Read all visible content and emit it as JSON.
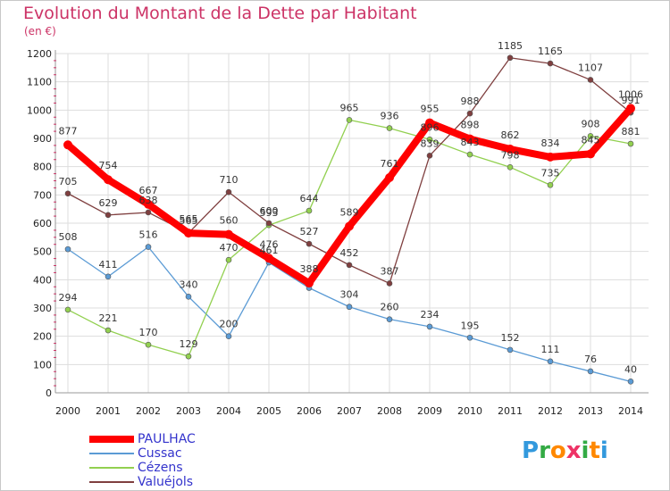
{
  "header": {
    "title": "Evolution du Montant de la Dette par Habitant",
    "unit": "(en €)"
  },
  "logo": {
    "letters": [
      "P",
      "r",
      "o",
      "x",
      "i",
      "t",
      "i"
    ],
    "colors": [
      "#3399dd",
      "#33aa44",
      "#ff8800",
      "#ee3366",
      "#33aa44",
      "#ff8800",
      "#3399dd"
    ]
  },
  "chart_data": {
    "type": "line",
    "title": "Evolution du Montant de la Dette par Habitant",
    "subtitle": "(en €)",
    "xlabel": "",
    "ylabel": "",
    "x": [
      "2000",
      "2001",
      "2002",
      "2003",
      "2004",
      "2005",
      "2006",
      "2007",
      "2008",
      "2009",
      "2010",
      "2011",
      "2012",
      "2013",
      "2014"
    ],
    "ylim": [
      0,
      1200
    ],
    "yticks": [
      0,
      100,
      200,
      300,
      400,
      500,
      600,
      700,
      800,
      900,
      1000,
      1100,
      1200
    ],
    "grid": true,
    "legend_position": "bottom-left",
    "series": [
      {
        "name": "Cussac",
        "color": "#5b9bd5",
        "values": [
          508,
          411,
          516,
          340,
          200,
          461,
          371,
          304,
          260,
          234,
          195,
          152,
          111,
          76,
          40
        ],
        "labels": [
          "508",
          "411",
          "516",
          "340",
          "200",
          "461",
          "",
          "304",
          "260",
          "234",
          "195",
          "152",
          "111",
          "76",
          "40"
        ]
      },
      {
        "name": "Cézens",
        "color": "#92d050",
        "values": [
          294,
          221,
          170,
          129,
          470,
          593,
          644,
          965,
          936,
          896,
          843,
          798,
          735,
          908,
          881
        ],
        "labels": [
          "294",
          "221",
          "170",
          "129",
          "470",
          "593",
          "644",
          "965",
          "936",
          "896",
          "843",
          "798",
          "735",
          "908",
          "881"
        ]
      },
      {
        "name": "Valuéjols",
        "color": "#7f3f3f",
        "values": [
          705,
          629,
          638,
          565,
          710,
          600,
          527,
          452,
          387,
          839,
          988,
          1185,
          1165,
          1107,
          991
        ],
        "labels": [
          "705",
          "629",
          "638",
          "565",
          "710",
          "600",
          "527",
          "452",
          "387",
          "839",
          "988",
          "1185",
          "1165",
          "1107",
          "991"
        ]
      },
      {
        "name": "PAULHAC",
        "color": "#ff0000",
        "values": [
          877,
          754,
          667,
          565,
          560,
          476,
          388,
          589,
          761,
          955,
          898,
          862,
          834,
          845,
          1006
        ],
        "labels": [
          "877",
          "754",
          "667",
          "565",
          "560",
          "476",
          "388",
          "589",
          "761",
          "955",
          "898",
          "862",
          "834",
          "845",
          "1006"
        ]
      }
    ]
  }
}
